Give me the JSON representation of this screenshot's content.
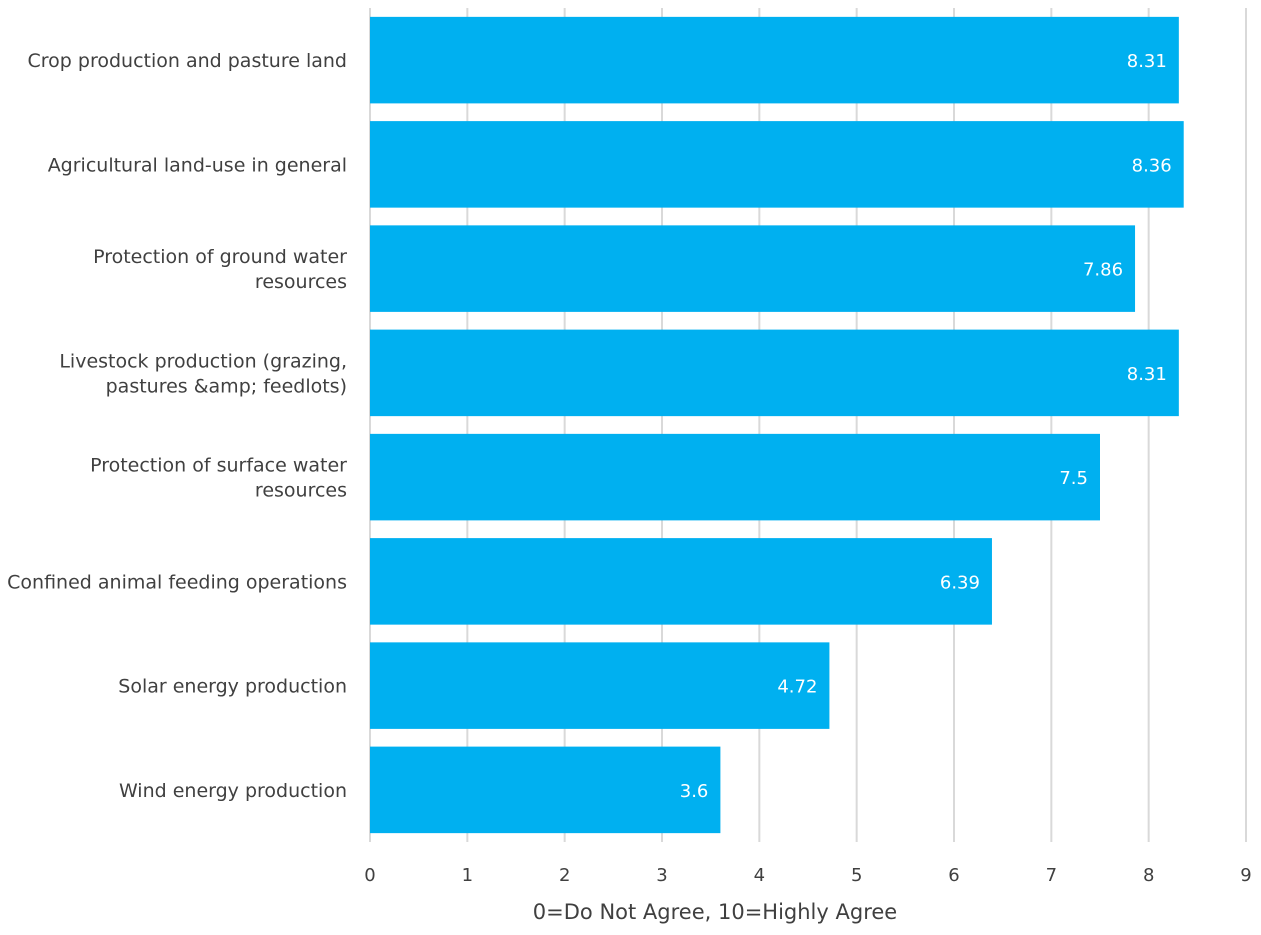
{
  "chart_data": {
    "type": "bar",
    "orientation": "horizontal",
    "categories": [
      "Crop production and pasture land",
      "Agricultural land-use in general",
      "Protection of ground water resources",
      "Livestock production (grazing, pastures &amp; feedlots)",
      "Protection of surface water resources",
      "Confined animal feeding operations",
      "Solar energy production",
      "Wind energy production"
    ],
    "values": [
      8.31,
      8.36,
      7.86,
      8.31,
      7.5,
      6.39,
      4.72,
      3.6
    ],
    "value_labels": [
      "8.31",
      "8.36",
      "7.86",
      "8.31",
      "7.5",
      "6.39",
      "4.72",
      "3.6"
    ],
    "xlabel": "0=Do Not Agree, 10=Highly Agree",
    "ylabel": "",
    "xlim": [
      0,
      9
    ],
    "xticks": [
      "0",
      "1",
      "2",
      "3",
      "4",
      "5",
      "6",
      "7",
      "8",
      "9"
    ],
    "grid": "vertical",
    "legend": "none",
    "colors": {
      "bar": "#00b0f0",
      "grid": "#d9d9d9",
      "text": "#404040",
      "bar_label": "#ffffff"
    }
  }
}
